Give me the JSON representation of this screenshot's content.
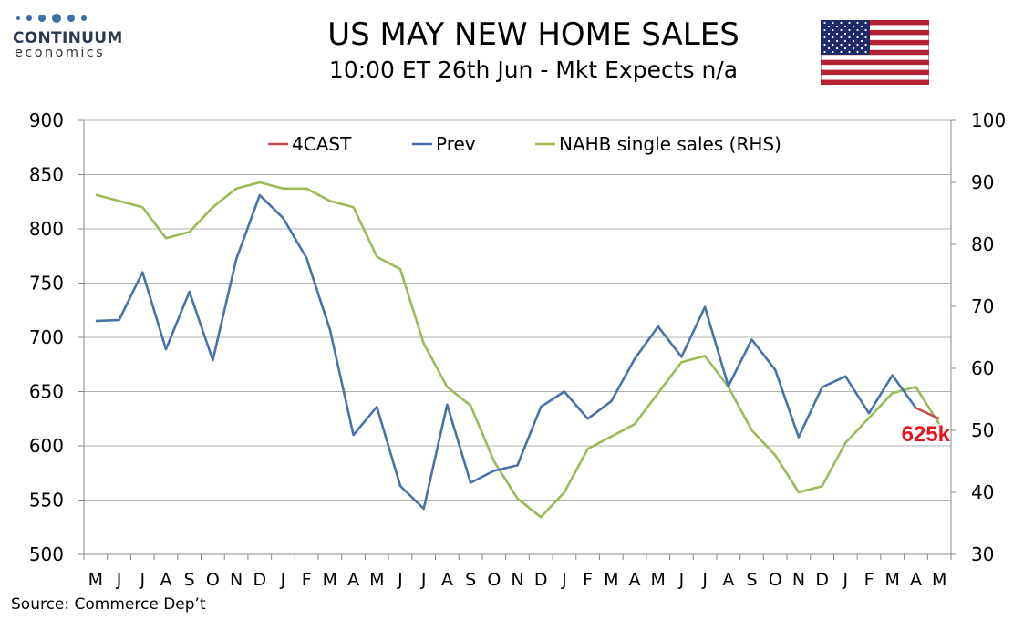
{
  "header": {
    "title": "US MAY NEW HOME SALES",
    "subtitle": "10:00 ET 26th Jun - Mkt Expects n/a"
  },
  "logo": {
    "brand": "CONTINUUM",
    "sub": "economics"
  },
  "footer": {
    "source": "Source: Commerce Dep’t"
  },
  "colors": {
    "forecast": "#c0504d",
    "prev": "#4a72a8",
    "nahb": "#9bbb59",
    "callout": "#e8141c",
    "grid": "#b0b0b0"
  },
  "chart_data": {
    "type": "line",
    "categories": [
      "M",
      "J",
      "J",
      "A",
      "S",
      "O",
      "N",
      "D",
      "J",
      "F",
      "M",
      "A",
      "M",
      "J",
      "J",
      "A",
      "S",
      "O",
      "N",
      "D",
      "J",
      "F",
      "M",
      "A",
      "M",
      "J",
      "J",
      "A",
      "S",
      "O",
      "N",
      "D",
      "J",
      "F",
      "M",
      "A",
      "M"
    ],
    "y_left": {
      "ylim": [
        500,
        900
      ],
      "ticks": [
        500,
        550,
        600,
        650,
        700,
        750,
        800,
        850,
        900
      ]
    },
    "y_right": {
      "ylim": [
        30,
        100
      ],
      "ticks": [
        30,
        40,
        50,
        60,
        70,
        80,
        90,
        100
      ]
    },
    "legend_position": "top",
    "series": [
      {
        "name": "4CAST",
        "axis": "left",
        "values": [
          null,
          null,
          null,
          null,
          null,
          null,
          null,
          null,
          null,
          null,
          null,
          null,
          null,
          null,
          null,
          null,
          null,
          null,
          null,
          null,
          null,
          null,
          null,
          null,
          null,
          null,
          null,
          null,
          null,
          null,
          null,
          null,
          null,
          null,
          null,
          635,
          625
        ]
      },
      {
        "name": "Prev",
        "axis": "left",
        "values": [
          715,
          716,
          760,
          689,
          742,
          679,
          772,
          831,
          810,
          773,
          707,
          610,
          636,
          563,
          542,
          638,
          566,
          577,
          582,
          636,
          650,
          625,
          641,
          680,
          710,
          682,
          728,
          655,
          698,
          670,
          608,
          654,
          664,
          630,
          665,
          635,
          null
        ]
      },
      {
        "name": "NAHB single sales (RHS)",
        "axis": "right",
        "values": [
          88,
          87,
          86,
          81,
          82,
          86,
          89,
          90,
          89,
          89,
          87,
          86,
          78,
          76,
          64,
          57,
          54,
          45,
          39,
          36,
          40,
          47,
          49,
          51,
          56,
          61,
          62,
          57,
          50,
          46,
          40,
          41,
          48,
          52,
          56,
          57,
          51
        ]
      }
    ],
    "callout": {
      "text": "625k"
    }
  }
}
